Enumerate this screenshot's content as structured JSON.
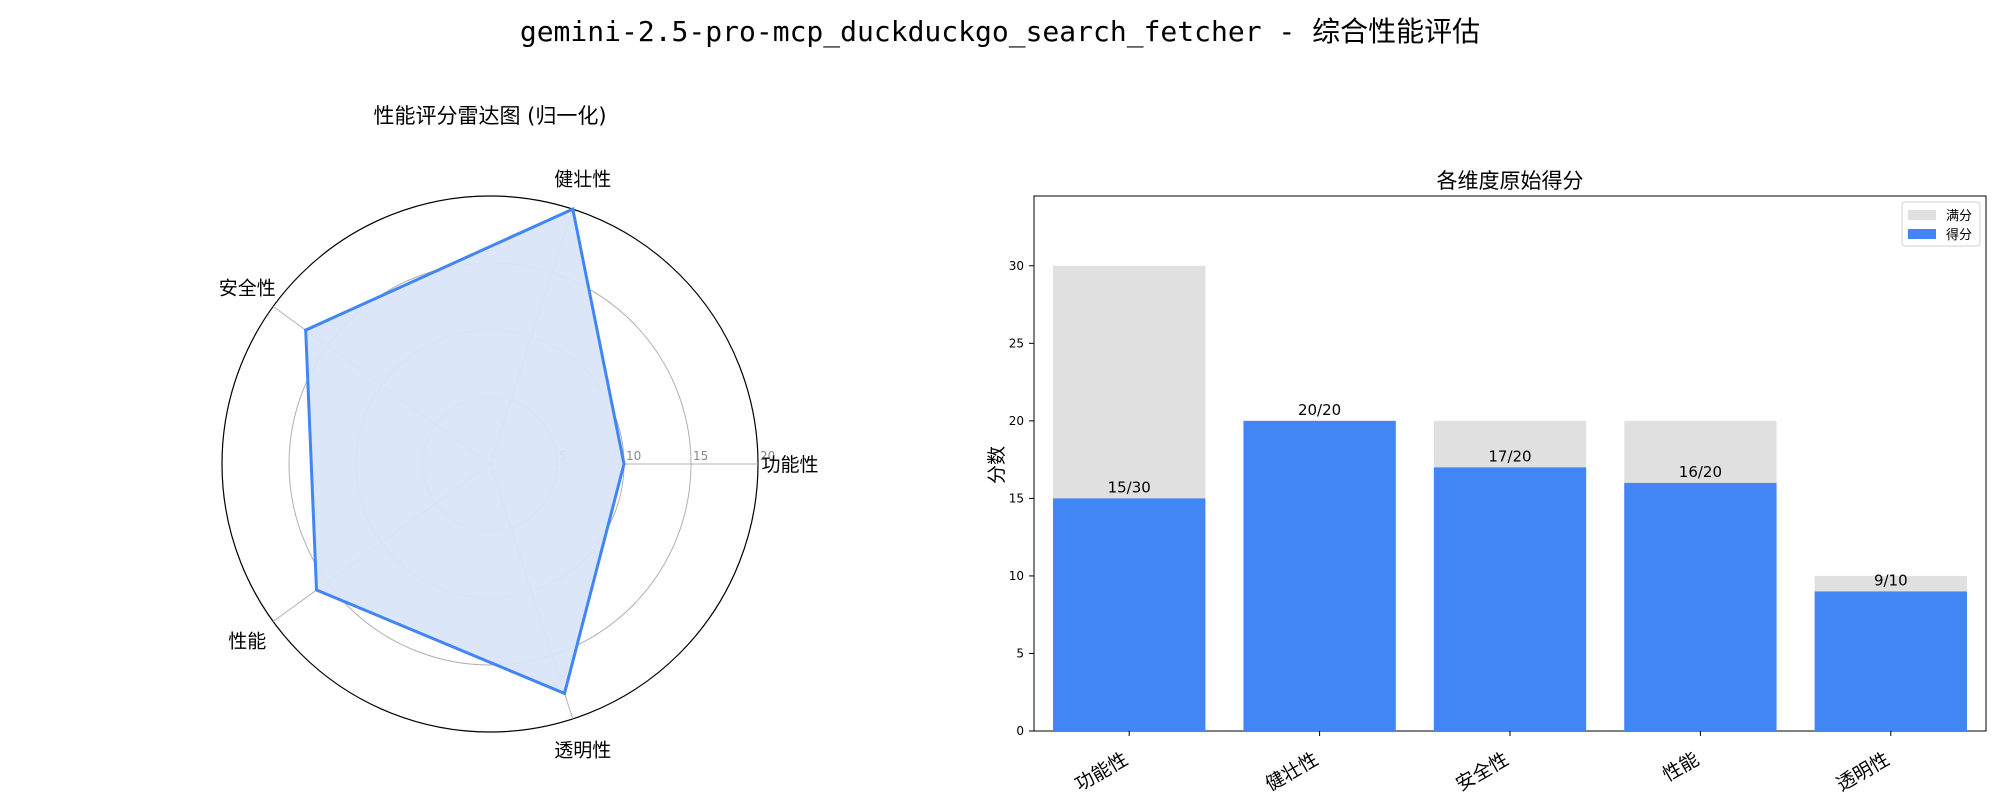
{
  "page": {
    "title": "gemini-2.5-pro-mcp_duckduckgo_search_fetcher - 综合性能评估"
  },
  "chart_data": [
    {
      "type": "radar",
      "title": "性能评分雷达图 (归一化)",
      "categories": [
        "功能性",
        "健壮性",
        "安全性",
        "性能",
        "透明性"
      ],
      "values": [
        10,
        20,
        17,
        16,
        18
      ],
      "rlim": [
        0,
        20
      ],
      "rticks": [
        5,
        10,
        15,
        20
      ],
      "rtick_labels": [
        "5",
        "10",
        "15",
        "20"
      ],
      "colors": {
        "line": "#4285f4",
        "fill": "#dae5f9"
      }
    },
    {
      "type": "bar",
      "title": "各维度原始得分",
      "categories": [
        "功能性",
        "健壮性",
        "安全性",
        "性能",
        "透明性"
      ],
      "ylabel": "分数",
      "ylim": [
        0,
        34.5
      ],
      "yticks": [
        0,
        5,
        10,
        15,
        20,
        25,
        30
      ],
      "series": [
        {
          "name": "满分",
          "values": [
            30,
            20,
            20,
            20,
            10
          ],
          "color": "#e0e0e0"
        },
        {
          "name": "得分",
          "values": [
            15,
            20,
            17,
            16,
            9
          ],
          "color": "#4285f4"
        }
      ],
      "data_labels": [
        "15/30",
        "20/20",
        "17/20",
        "16/20",
        "9/10"
      ],
      "legend": "top-right"
    }
  ]
}
